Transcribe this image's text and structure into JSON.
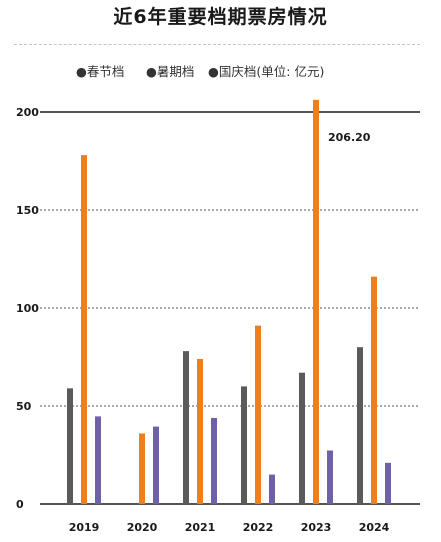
{
  "chart_data": {
    "type": "bar",
    "title": "近6年重要档期票房情况",
    "categories": [
      "2019",
      "2020",
      "2021",
      "2022",
      "2023",
      "2024"
    ],
    "series": [
      {
        "name": "●春节档",
        "color": "#5a5a5a",
        "values": [
          59,
          null,
          78,
          60,
          67,
          80
        ]
      },
      {
        "name": "●暑期档",
        "color": "#ee7f1a",
        "values": [
          178,
          36,
          74,
          91,
          206.2,
          116
        ]
      },
      {
        "name": "●国庆档(单位: 亿元)",
        "color": "#6f60a8",
        "values": [
          44.7,
          39.5,
          43.9,
          15,
          27.3,
          21
        ]
      }
    ],
    "yticks": [
      "0",
      "50",
      "100",
      "150",
      "200"
    ],
    "ylim": [
      0,
      210
    ],
    "grid": true,
    "legend_position": "top",
    "annotations": [
      {
        "text": "206.20",
        "category": "2023",
        "series": 1
      }
    ]
  }
}
